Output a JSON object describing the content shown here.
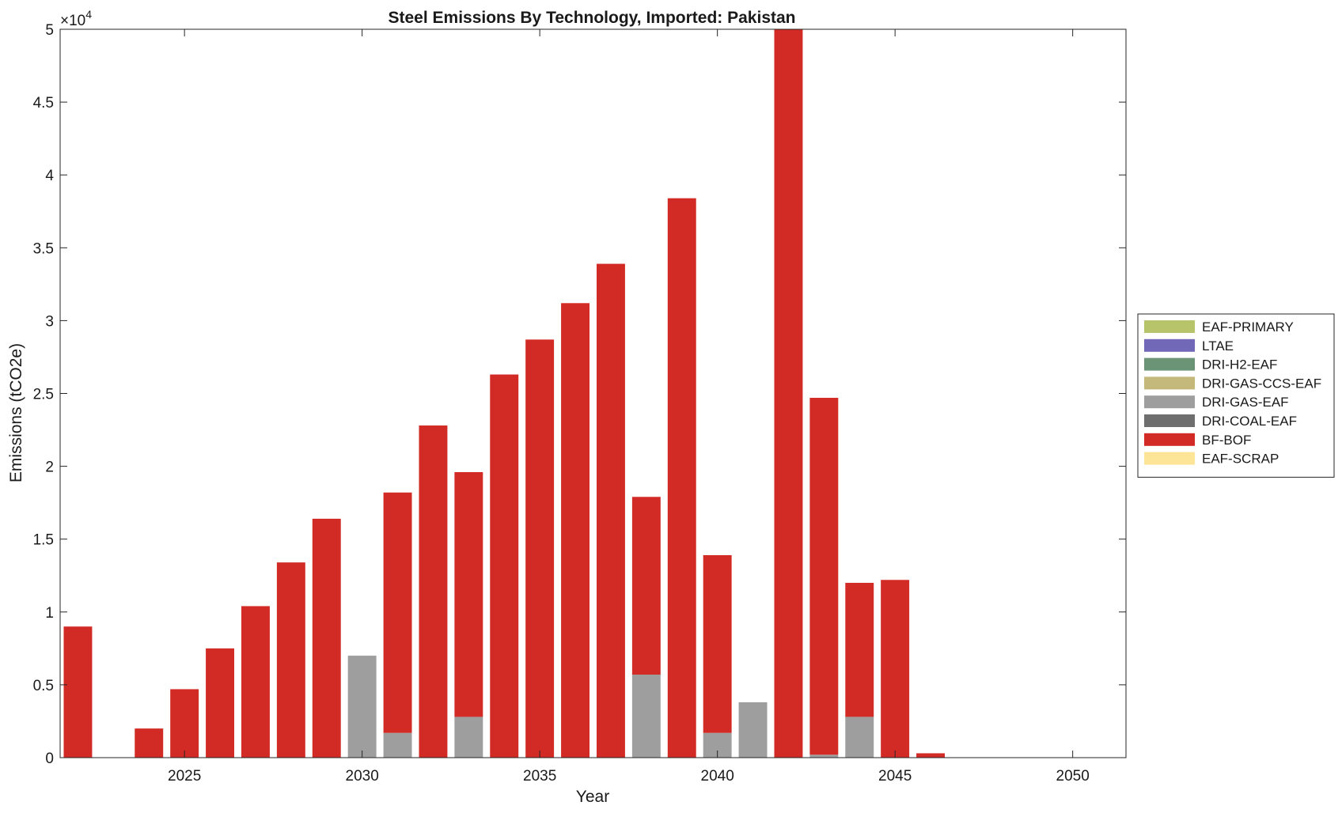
{
  "chart_data": {
    "type": "bar",
    "stacked": true,
    "title": "Steel Emissions By Technology, Imported: Pakistan",
    "xlabel": "Year",
    "ylabel": "Emissions (tCO2e)",
    "y_exponent_label": "×10",
    "y_exponent_power": "4",
    "xlim": [
      2021.5,
      2051.5
    ],
    "ylim": [
      0,
      50000
    ],
    "x_ticks": [
      2025,
      2030,
      2035,
      2040,
      2045,
      2050
    ],
    "y_ticks": [
      0,
      5000,
      10000,
      15000,
      20000,
      25000,
      30000,
      35000,
      40000,
      45000,
      50000
    ],
    "y_tick_labels": [
      "0",
      "0.5",
      "1",
      "1.5",
      "2",
      "2.5",
      "3",
      "3.5",
      "4",
      "4.5",
      "5"
    ],
    "legend_position": "outside-right",
    "x": [
      2022,
      2023,
      2024,
      2025,
      2026,
      2027,
      2028,
      2029,
      2030,
      2031,
      2032,
      2033,
      2034,
      2035,
      2036,
      2037,
      2038,
      2039,
      2040,
      2041,
      2042,
      2043,
      2044,
      2045,
      2046,
      2047,
      2048,
      2049,
      2050
    ],
    "series": [
      {
        "name": "EAF-PRIMARY",
        "color": "#b8c46a",
        "values": [
          0,
          0,
          0,
          0,
          0,
          0,
          0,
          0,
          0,
          0,
          0,
          0,
          0,
          0,
          0,
          0,
          0,
          0,
          0,
          0,
          0,
          0,
          0,
          0,
          0,
          0,
          0,
          0,
          0
        ]
      },
      {
        "name": "LTAE",
        "color": "#7168b8",
        "values": [
          0,
          0,
          0,
          0,
          0,
          0,
          0,
          0,
          0,
          0,
          0,
          0,
          0,
          0,
          0,
          0,
          0,
          0,
          0,
          0,
          0,
          0,
          0,
          0,
          0,
          0,
          0,
          0,
          0
        ]
      },
      {
        "name": "DRI-H2-EAF",
        "color": "#6b9476",
        "values": [
          0,
          0,
          0,
          0,
          0,
          0,
          0,
          0,
          0,
          0,
          0,
          0,
          0,
          0,
          0,
          0,
          0,
          0,
          0,
          0,
          0,
          0,
          0,
          0,
          0,
          0,
          0,
          0,
          0
        ]
      },
      {
        "name": "DRI-GAS-CCS-EAF",
        "color": "#c4b97a",
        "values": [
          0,
          0,
          0,
          0,
          0,
          0,
          0,
          0,
          0,
          0,
          0,
          0,
          0,
          0,
          0,
          0,
          0,
          0,
          0,
          0,
          0,
          0,
          0,
          0,
          0,
          0,
          0,
          0,
          0
        ]
      },
      {
        "name": "DRI-GAS-EAF",
        "color": "#9e9e9e",
        "values": [
          0,
          0,
          0,
          0,
          0,
          0,
          0,
          0,
          7000,
          1700,
          0,
          2800,
          0,
          0,
          0,
          0,
          5700,
          0,
          1700,
          3800,
          0,
          200,
          2800,
          0,
          0,
          0,
          0,
          0,
          0
        ]
      },
      {
        "name": "DRI-COAL-EAF",
        "color": "#6e6e6e",
        "values": [
          0,
          0,
          0,
          0,
          0,
          0,
          0,
          0,
          0,
          0,
          0,
          0,
          0,
          0,
          0,
          0,
          0,
          0,
          0,
          0,
          0,
          0,
          0,
          0,
          0,
          0,
          0,
          0,
          0
        ]
      },
      {
        "name": "BF-BOF",
        "color": "#d22a24",
        "values": [
          9000,
          0,
          2000,
          4700,
          7500,
          10400,
          13400,
          16400,
          0,
          16500,
          22800,
          16800,
          26300,
          28700,
          31200,
          33900,
          12200,
          38400,
          12200,
          0,
          50000,
          24500,
          9200,
          12200,
          300,
          0,
          0,
          0,
          0
        ]
      },
      {
        "name": "EAF-SCRAP",
        "color": "#fde597",
        "values": [
          0,
          0,
          0,
          0,
          0,
          0,
          0,
          0,
          0,
          0,
          0,
          0,
          0,
          0,
          0,
          0,
          0,
          0,
          0,
          0,
          0,
          0,
          0,
          0,
          0,
          0,
          0,
          0,
          0
        ]
      }
    ]
  }
}
